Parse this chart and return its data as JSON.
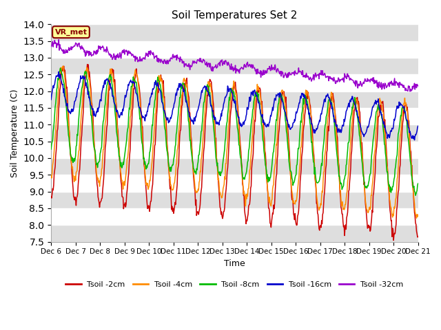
{
  "title": "Soil Temperatures Set 2",
  "xlabel": "Time",
  "ylabel": "Soil Temperature (C)",
  "ylim": [
    7.5,
    14.0
  ],
  "yticks": [
    7.5,
    8.0,
    8.5,
    9.0,
    9.5,
    10.0,
    10.5,
    11.0,
    11.5,
    12.0,
    12.5,
    13.0,
    13.5,
    14.0
  ],
  "colors": {
    "Tsoil -2cm": "#cc0000",
    "Tsoil -4cm": "#ff8c00",
    "Tsoil -8cm": "#00bb00",
    "Tsoil -16cm": "#0000cc",
    "Tsoil -32cm": "#9900cc"
  },
  "annotation_text": "VR_met",
  "annotation_bg": "#ffff99",
  "annotation_border": "#880000",
  "bg_band_color": "#dedede",
  "n_days": 15,
  "start_day": 6,
  "figwidth": 6.4,
  "figheight": 4.8,
  "dpi": 100
}
